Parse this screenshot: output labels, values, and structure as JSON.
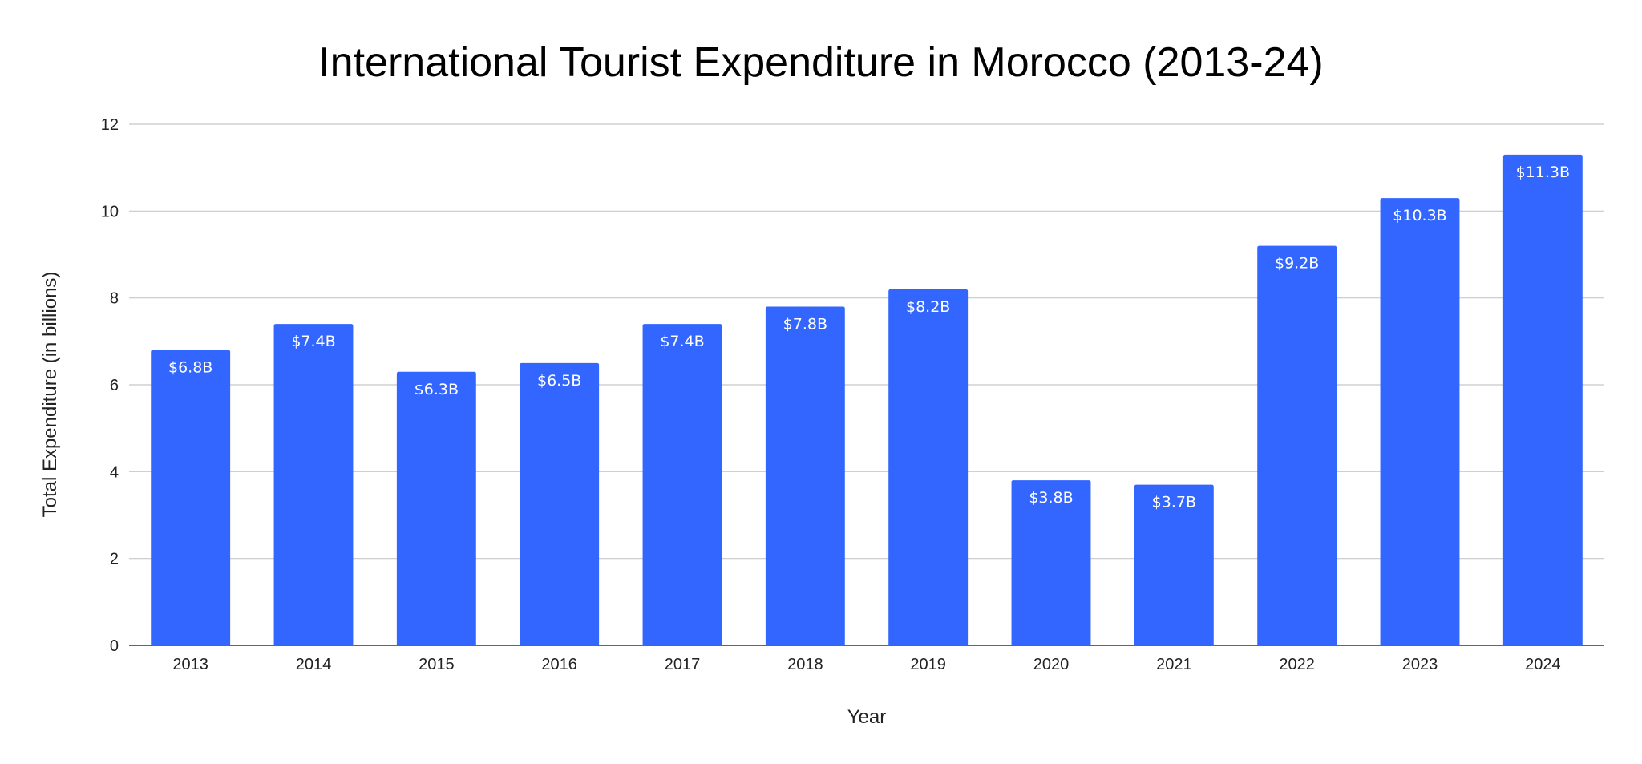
{
  "chart_data": {
    "type": "bar",
    "title": "International Tourist Expenditure in Morocco (2013-24)",
    "xlabel": "Year",
    "ylabel": "Total Expenditure (in billions)",
    "categories": [
      "2013",
      "2014",
      "2015",
      "2016",
      "2017",
      "2018",
      "2019",
      "2020",
      "2021",
      "2022",
      "2023",
      "2024"
    ],
    "values": [
      6.8,
      7.4,
      6.3,
      6.5,
      7.4,
      7.8,
      8.2,
      3.8,
      3.7,
      9.2,
      10.3,
      11.3
    ],
    "data_labels": [
      "$6.8B",
      "$7.4B",
      "$6.3B",
      "$6.5B",
      "$7.4B",
      "$7.8B",
      "$8.2B",
      "$3.8B",
      "$3.7B",
      "$9.2B",
      "$10.3B",
      "$11.3B"
    ],
    "ylim": [
      0,
      12
    ],
    "yticks": [
      "0",
      "2",
      "4",
      "6",
      "8",
      "10",
      "12"
    ],
    "grid": true,
    "legend": "none",
    "colors": {
      "bar": "#3366ff",
      "grid": "#c8c8c8",
      "axis": "#333333",
      "label": "#ffffff"
    }
  }
}
